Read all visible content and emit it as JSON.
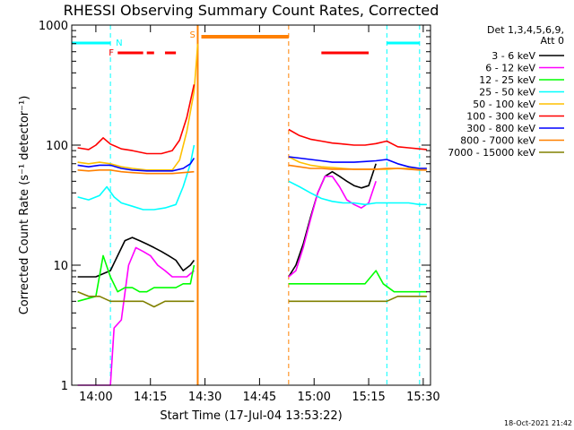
{
  "chart_data": {
    "type": "line",
    "title": "RHESSI Observing Summary Count Rates, Corrected",
    "xlabel": "Start Time (17-Jul-04 13:53:22)",
    "ylabel": "Corrected Count Rate (s⁻¹ detector⁻¹)",
    "y_scale": "log",
    "ylim": [
      1,
      1000
    ],
    "xlim": [
      "13:53:22",
      "15:32"
    ],
    "x_ticks": [
      "14:00",
      "14:15",
      "14:30",
      "14:45",
      "15:00",
      "15:15",
      "15:30"
    ],
    "y_ticks": [
      "1",
      "10",
      "100",
      "1000"
    ],
    "legend_header": [
      "Det 1,3,4,5,6,9,",
      "Att 0"
    ],
    "legend_position": "right",
    "timestamp": "18-Oct-2021 21:42",
    "flag_labels": {
      "night": "N",
      "flare": "F",
      "saa": "S"
    },
    "series": [
      {
        "name": "3 - 6 keV",
        "color": "#000000",
        "segments": [
          {
            "t": [
              "13:55",
              "14:00",
              "14:04",
              "14:06",
              "14:08",
              "14:10",
              "14:12",
              "14:14",
              "14:16",
              "14:18",
              "14:20",
              "14:22",
              "14:24",
              "14:26",
              "14:27"
            ],
            "v": [
              8,
              8,
              9,
              12,
              16,
              17,
              16,
              15,
              14,
              13,
              12,
              11,
              9,
              10,
              11
            ]
          },
          {
            "t": [
              "14:53",
              "14:55",
              "14:57",
              "14:59",
              "15:01",
              "15:03",
              "15:05",
              "15:07",
              "15:09",
              "15:11",
              "15:13",
              "15:15",
              "15:17"
            ],
            "v": [
              8,
              10,
              15,
              25,
              40,
              55,
              60,
              55,
              50,
              46,
              44,
              46,
              70
            ]
          }
        ]
      },
      {
        "name": "6 - 12 keV",
        "color": "#ff00ff",
        "segments": [
          {
            "t": [
              "13:55",
              "14:00",
              "14:04",
              "14:05",
              "14:07",
              "14:09",
              "14:11",
              "14:13",
              "14:15",
              "14:17",
              "14:19",
              "14:21",
              "14:23",
              "14:25",
              "14:27"
            ],
            "v": [
              1,
              1,
              1,
              3,
              3.5,
              10,
              14,
              13,
              12,
              10,
              9,
              8,
              8,
              8,
              9
            ]
          },
          {
            "t": [
              "14:53",
              "14:55",
              "14:57",
              "14:59",
              "15:01",
              "15:03",
              "15:05",
              "15:07",
              "15:09",
              "15:11",
              "15:13",
              "15:15",
              "15:17"
            ],
            "v": [
              8,
              9,
              14,
              24,
              40,
              55,
              55,
              45,
              35,
              32,
              30,
              33,
              50
            ]
          }
        ]
      },
      {
        "name": "12 - 25 keV",
        "color": "#00ff00",
        "segments": [
          {
            "t": [
              "13:55",
              "14:00",
              "14:02",
              "14:04",
              "14:06",
              "14:08",
              "14:10",
              "14:12",
              "14:14",
              "14:16",
              "14:18",
              "14:20",
              "14:22",
              "14:24",
              "14:26",
              "14:27"
            ],
            "v": [
              5,
              5.5,
              12,
              8,
              6,
              6.5,
              6.5,
              6,
              6,
              6.5,
              6.5,
              6.5,
              6.5,
              7,
              7,
              10
            ]
          },
          {
            "t": [
              "14:53",
              "14:56",
              "14:59",
              "15:02",
              "15:05",
              "15:08",
              "15:11",
              "15:14",
              "15:17",
              "15:19",
              "15:22",
              "15:25",
              "15:28",
              "15:31"
            ],
            "v": [
              7,
              7,
              7,
              7,
              7,
              7,
              7,
              7,
              9,
              7,
              6,
              6,
              6,
              6
            ]
          }
        ]
      },
      {
        "name": "25 - 50 keV",
        "color": "#00ffff",
        "segments": [
          {
            "t": [
              "13:55",
              "13:58",
              "14:01",
              "14:03",
              "14:05",
              "14:07",
              "14:10",
              "14:13",
              "14:16",
              "14:19",
              "14:22",
              "14:24",
              "14:26",
              "14:27"
            ],
            "v": [
              37,
              35,
              38,
              45,
              37,
              33,
              31,
              29,
              29,
              30,
              32,
              45,
              70,
              100
            ]
          },
          {
            "t": [
              "14:53",
              "14:56",
              "14:59",
              "15:02",
              "15:05",
              "15:08",
              "15:11",
              "15:14",
              "15:17",
              "15:20",
              "15:23",
              "15:26",
              "15:29",
              "15:31"
            ],
            "v": [
              50,
              45,
              40,
              36,
              34,
              33,
              33,
              32,
              33,
              33,
              33,
              33,
              32,
              32
            ]
          }
        ]
      },
      {
        "name": "50 - 100 keV",
        "color": "#ffc000",
        "segments": [
          {
            "t": [
              "13:55",
              "13:58",
              "14:01",
              "14:04",
              "14:07",
              "14:10",
              "14:14",
              "14:18",
              "14:21",
              "14:23",
              "14:25",
              "14:27",
              "14:28"
            ],
            "v": [
              72,
              70,
              72,
              70,
              66,
              64,
              62,
              62,
              62,
              75,
              130,
              280,
              700
            ]
          },
          {
            "t": [
              "14:53",
              "14:56",
              "14:59",
              "15:02",
              "15:05",
              "15:08",
              "15:11",
              "15:14",
              "15:17",
              "15:20",
              "15:23",
              "15:26",
              "15:29",
              "15:31"
            ],
            "v": [
              80,
              72,
              68,
              66,
              65,
              64,
              63,
              63,
              63,
              63,
              64,
              64,
              64,
              64
            ]
          }
        ]
      },
      {
        "name": "100 - 300 keV",
        "color": "#ff0000",
        "segments": [
          {
            "t": [
              "13:55",
              "13:58",
              "14:00",
              "14:02",
              "14:04",
              "14:07",
              "14:10",
              "14:14",
              "14:18",
              "14:21",
              "14:23",
              "14:25",
              "14:27"
            ],
            "v": [
              95,
              92,
              100,
              115,
              102,
              93,
              90,
              85,
              85,
              90,
              110,
              170,
              320
            ]
          },
          {
            "t": [
              "14:53",
              "14:56",
              "14:59",
              "15:02",
              "15:05",
              "15:08",
              "15:11",
              "15:14",
              "15:17",
              "15:20",
              "15:23",
              "15:26",
              "15:29",
              "15:31"
            ],
            "v": [
              135,
              120,
              112,
              108,
              104,
              102,
              100,
              100,
              103,
              108,
              97,
              95,
              93,
              92
            ]
          }
        ]
      },
      {
        "name": "300 - 800 keV",
        "color": "#0000ff",
        "segments": [
          {
            "t": [
              "13:55",
              "13:58",
              "14:01",
              "14:04",
              "14:07",
              "14:10",
              "14:14",
              "14:18",
              "14:21",
              "14:24",
              "14:26",
              "14:27"
            ],
            "v": [
              68,
              66,
              68,
              68,
              64,
              62,
              61,
              61,
              61,
              64,
              70,
              78
            ]
          },
          {
            "t": [
              "14:53",
              "14:56",
              "14:59",
              "15:02",
              "15:05",
              "15:08",
              "15:11",
              "15:14",
              "15:17",
              "15:20",
              "15:23",
              "15:26",
              "15:29",
              "15:31"
            ],
            "v": [
              80,
              78,
              76,
              74,
              72,
              72,
              72,
              73,
              74,
              76,
              70,
              66,
              64,
              64
            ]
          }
        ]
      },
      {
        "name": "800 - 7000 keV",
        "color": "#ff8000",
        "segments": [
          {
            "t": [
              "13:55",
              "13:58",
              "14:01",
              "14:04",
              "14:07",
              "14:10",
              "14:14",
              "14:18",
              "14:21",
              "14:24",
              "14:27"
            ],
            "v": [
              62,
              61,
              62,
              62,
              60,
              59,
              58,
              58,
              58,
              59,
              60
            ]
          },
          {
            "t": [
              "14:53",
              "14:56",
              "14:59",
              "15:02",
              "15:05",
              "15:08",
              "15:11",
              "15:14",
              "15:17",
              "15:20",
              "15:23",
              "15:26",
              "15:29",
              "15:31"
            ],
            "v": [
              68,
              66,
              64,
              64,
              63,
              63,
              63,
              63,
              63,
              64,
              64,
              63,
              62,
              62
            ]
          }
        ]
      },
      {
        "name": "7000 - 15000 keV",
        "color": "#808000",
        "segments": [
          {
            "t": [
              "13:55",
              "13:58",
              "14:01",
              "14:04",
              "14:07",
              "14:10",
              "14:13",
              "14:16",
              "14:19",
              "14:22",
              "14:25",
              "14:27"
            ],
            "v": [
              6,
              5.5,
              5.5,
              5,
              5,
              5,
              5,
              4.5,
              5,
              5,
              5,
              5
            ]
          },
          {
            "t": [
              "14:53",
              "14:56",
              "14:59",
              "15:02",
              "15:05",
              "15:08",
              "15:11",
              "15:14",
              "15:17",
              "15:20",
              "15:23",
              "15:26",
              "15:29",
              "15:31"
            ],
            "v": [
              5,
              5,
              5,
              5,
              5,
              5,
              5,
              5,
              5,
              5,
              5.5,
              5.5,
              5.5,
              5.5
            ]
          }
        ]
      }
    ],
    "flags": {
      "night": [
        [
          "13:53:22",
          "14:04"
        ],
        [
          "15:20",
          "15:29"
        ]
      ],
      "flare": [
        [
          "14:06",
          "14:13"
        ],
        [
          "14:14",
          "14:16"
        ],
        [
          "14:19",
          "14:22"
        ],
        [
          "15:02",
          "15:15"
        ]
      ],
      "saa": [
        [
          "14:29",
          "14:53"
        ]
      ],
      "saa_markers": [
        "14:28",
        "14:53"
      ],
      "night_markers": [
        "14:04",
        "15:20",
        "15:29"
      ]
    },
    "colors": {
      "night": "#00ffff",
      "flare": "#ff0000",
      "saa": "#ff8000",
      "axis": "#000000"
    }
  }
}
